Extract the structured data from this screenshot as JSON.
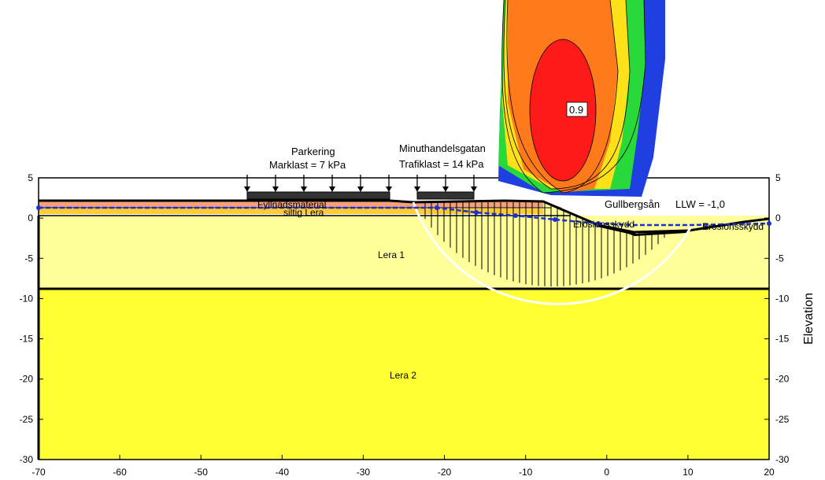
{
  "axes": {
    "x_ticks": [
      "-70",
      "-60",
      "-50",
      "-40",
      "-30",
      "-20",
      "-10",
      "0",
      "10",
      "20"
    ],
    "y_ticks_left": [
      "5",
      "0",
      "-5",
      "-10",
      "-15",
      "-20",
      "-25",
      "-30"
    ],
    "y_ticks_right": [
      "5",
      "0",
      "-5",
      "-10",
      "-15",
      "-20",
      "-25",
      "-30"
    ],
    "y_label_right": "Elevation"
  },
  "loads": {
    "parkering_title": "Parkering",
    "parkering_load": "Marklast = 7 kPa",
    "street_title": "Minuthandelsgatan",
    "street_load": "Trafiklast = 14 kPa"
  },
  "layers": {
    "fill": "Fyllnadsmaterial",
    "silty_clay": "siltig Lera",
    "clay1": "Lera 1",
    "clay2": "Lera 2",
    "erosion": "Erosionsskydd"
  },
  "water": {
    "river": "Gullbergsån",
    "llw": "LLW = -1,0"
  },
  "contour": {
    "fs_label": "0.9"
  },
  "colors": {
    "clay1": "#ffff99",
    "clay2": "#ffff33",
    "sand": "#ffcc33",
    "fill": "#f4a07a",
    "contour_red": "#ff1a1a",
    "contour_orange": "#ff7a1a",
    "contour_yellow": "#ffe11a",
    "contour_green": "#29d839",
    "contour_blue": "#1f3fe0",
    "water_line": "#1a2fd6"
  }
}
